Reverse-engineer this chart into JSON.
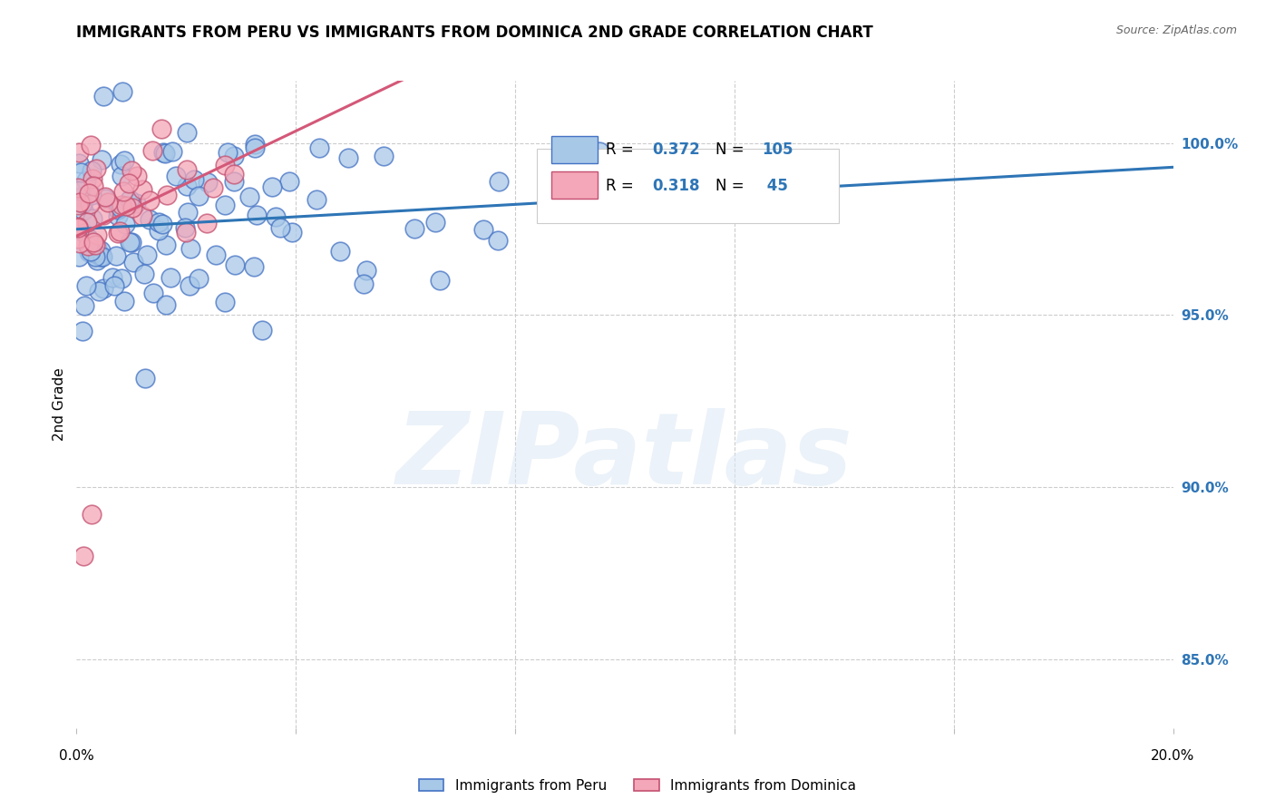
{
  "title": "IMMIGRANTS FROM PERU VS IMMIGRANTS FROM DOMINICA 2ND GRADE CORRELATION CHART",
  "source": "Source: ZipAtlas.com",
  "ylabel": "2nd Grade",
  "xlim": [
    0.0,
    20.0
  ],
  "ylim": [
    83.0,
    101.8
  ],
  "yticks": [
    85.0,
    90.0,
    95.0,
    100.0
  ],
  "ytick_labels": [
    "85.0%",
    "90.0%",
    "95.0%",
    "100.0%"
  ],
  "peru_color": "#a8c8e8",
  "peru_edge": "#4472c4",
  "dominica_color": "#f4a7b8",
  "dominica_edge": "#c45070",
  "peru_line_color": "#2e75b6",
  "dominica_line_color": "#d45878",
  "peru_R": 0.372,
  "peru_N": 105,
  "dominica_R": 0.318,
  "dominica_N": 45,
  "watermark": "ZIPatlas",
  "background": "#ffffff",
  "legend_label_blue": "R = 0.372   N = 105",
  "legend_label_pink": "R = 0.318   N =  45",
  "bottom_legend_peru": "Immigrants from Peru",
  "bottom_legend_dom": "Immigrants from Dominica"
}
